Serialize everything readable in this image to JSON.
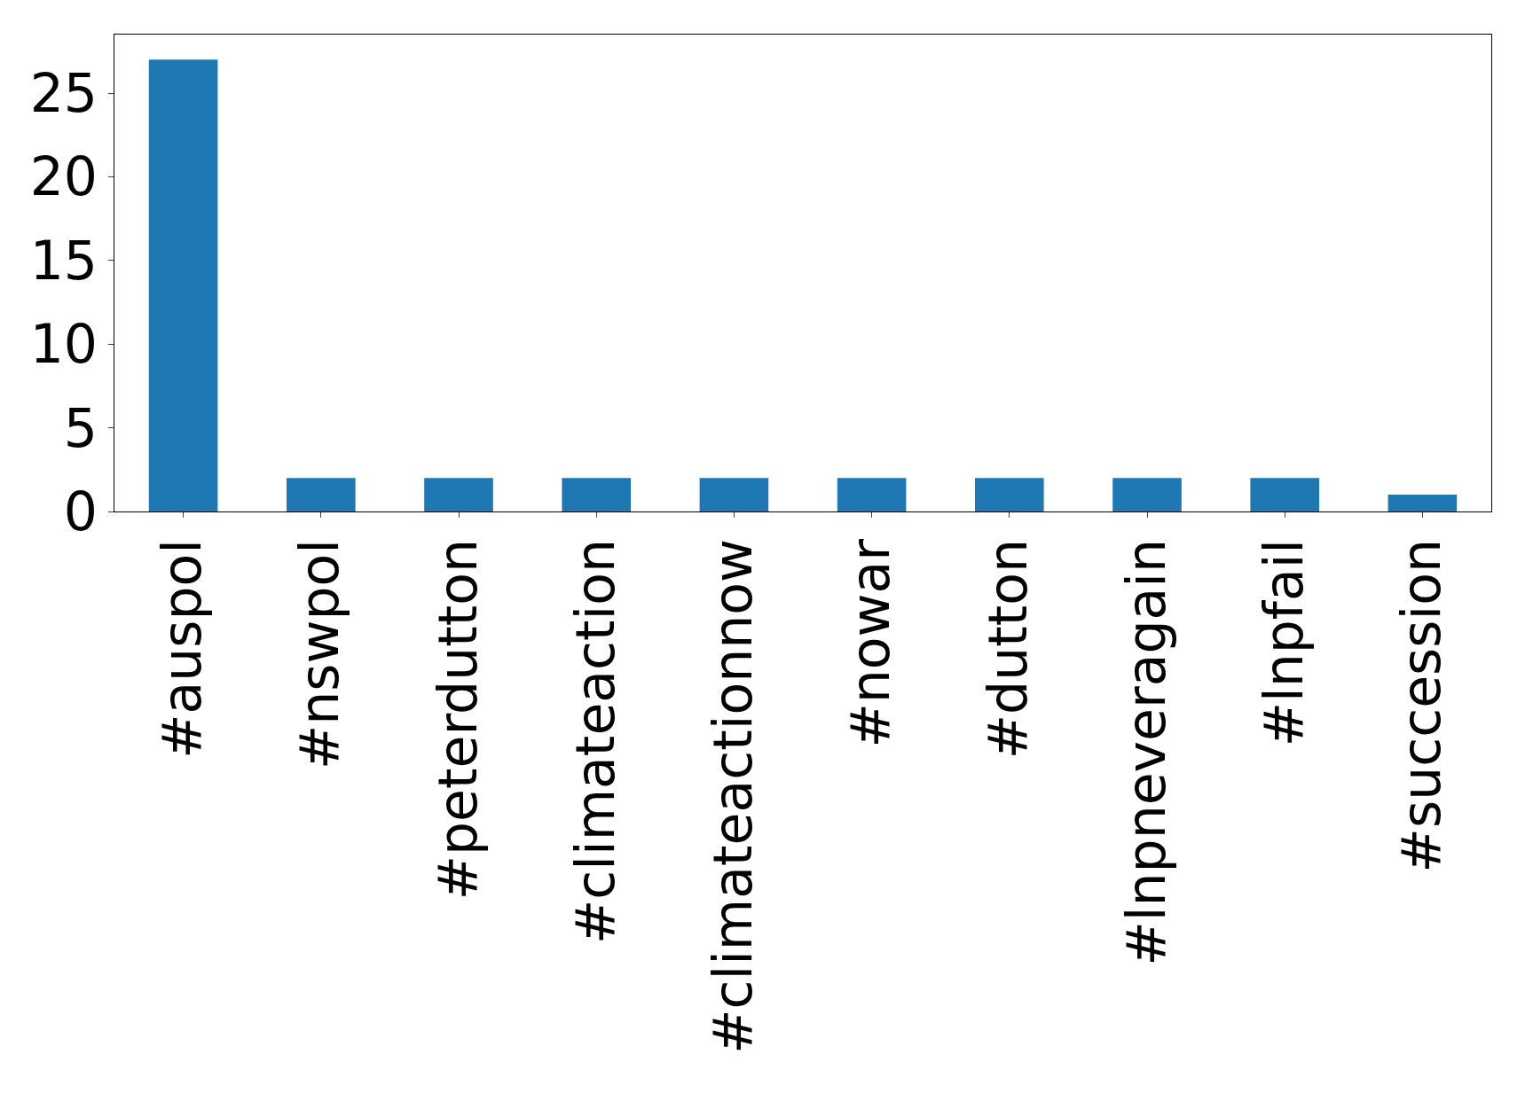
{
  "chart_data": {
    "type": "bar",
    "categories": [
      "#auspol",
      "#nswpol",
      "#peterdutton",
      "#climateaction",
      "#climateactionnow",
      "#nowar",
      "#dutton",
      "#lnpneveragain",
      "#lnpfail",
      "#succession"
    ],
    "values": [
      27,
      2,
      2,
      2,
      2,
      2,
      2,
      2,
      2,
      1
    ],
    "color": "#1f77b4",
    "ylim": [
      0,
      28.5
    ],
    "yticks": [
      0,
      5,
      10,
      15,
      20,
      25
    ]
  }
}
